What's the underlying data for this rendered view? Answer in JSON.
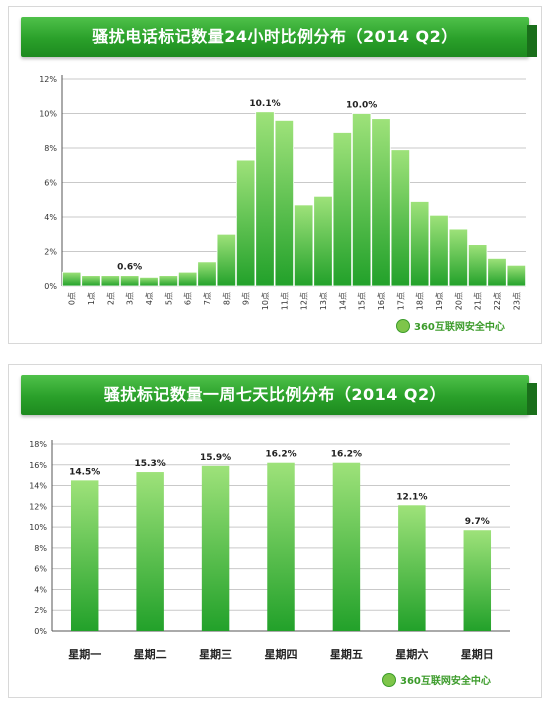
{
  "charts": {
    "hourly": {
      "title": "骚扰电话标记数量24小时比例分布（2014 Q2）"
    },
    "weekly": {
      "title": "骚扰标记数量一周七天比例分布（2014 Q2）"
    }
  },
  "brand": {
    "label": "360互联网安全中心"
  },
  "colors": {
    "bar_top": "#9ee27a",
    "bar_bottom": "#22a12a",
    "banner": "#2aa02a"
  },
  "chart_data": [
    {
      "type": "bar",
      "title": "骚扰电话标记数量24小时比例分布（2014 Q2）",
      "xlabel": "",
      "ylabel": "",
      "ylim": [
        0,
        12
      ],
      "yticks": [
        "0%",
        "2%",
        "4%",
        "6%",
        "8%",
        "10%",
        "12%"
      ],
      "categories": [
        "0点",
        "1点",
        "2点",
        "3点",
        "4点",
        "5点",
        "6点",
        "7点",
        "8点",
        "9点",
        "10点",
        "11点",
        "12点",
        "13点",
        "14点",
        "15点",
        "16点",
        "17点",
        "18点",
        "19点",
        "20点",
        "21点",
        "22点",
        "23点"
      ],
      "values": [
        0.8,
        0.6,
        0.6,
        0.6,
        0.5,
        0.6,
        0.8,
        1.4,
        3.0,
        7.3,
        10.1,
        9.6,
        4.7,
        5.2,
        8.9,
        10.0,
        9.7,
        7.9,
        4.9,
        4.1,
        3.3,
        2.4,
        1.6,
        1.2
      ],
      "data_labels": [
        {
          "index": 3,
          "text": "0.6%"
        },
        {
          "index": 10,
          "text": "10.1%"
        },
        {
          "index": 15,
          "text": "10.0%"
        }
      ],
      "grid": true
    },
    {
      "type": "bar",
      "title": "骚扰标记数量一周七天比例分布（2014 Q2）",
      "xlabel": "",
      "ylabel": "",
      "ylim": [
        0,
        18
      ],
      "yticks": [
        "0%",
        "2%",
        "4%",
        "6%",
        "8%",
        "10%",
        "12%",
        "14%",
        "16%",
        "18%"
      ],
      "categories": [
        "星期一",
        "星期二",
        "星期三",
        "星期四",
        "星期五",
        "星期六",
        "星期日"
      ],
      "values": [
        14.5,
        15.3,
        15.9,
        16.2,
        16.2,
        12.1,
        9.7
      ],
      "data_labels": [
        "14.5%",
        "15.3%",
        "15.9%",
        "16.2%",
        "16.2%",
        "12.1%",
        "9.7%"
      ],
      "grid": true
    }
  ]
}
